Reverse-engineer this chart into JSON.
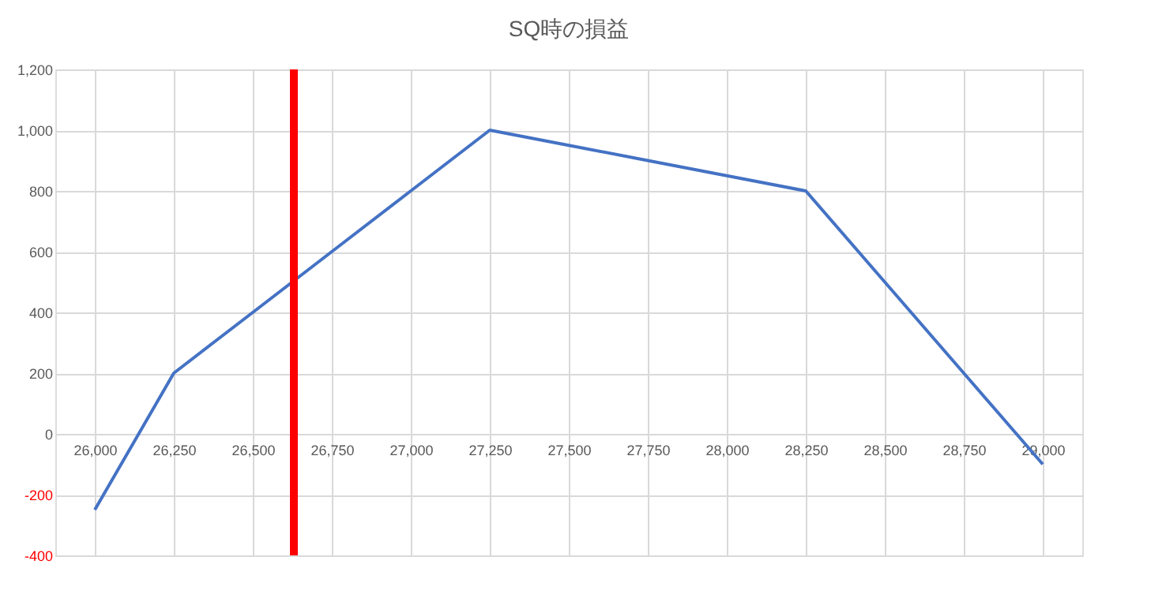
{
  "chart_data": {
    "type": "line",
    "title": "SQ時の損益",
    "x": [
      26000,
      26250,
      26500,
      26750,
      27000,
      27250,
      27500,
      27750,
      28000,
      28250,
      28500,
      28750,
      29000
    ],
    "series": [
      {
        "color": "#4472c4",
        "values": [
          -250,
          200,
          400,
          600,
          800,
          1000,
          950,
          900,
          850,
          800,
          500,
          200,
          -100
        ]
      }
    ],
    "xlim": [
      25875,
      29125
    ],
    "xticks": [
      {
        "value": 26000,
        "label": "26,000"
      },
      {
        "value": 26250,
        "label": "26,250"
      },
      {
        "value": 26500,
        "label": "26,500"
      },
      {
        "value": 26750,
        "label": "26,750"
      },
      {
        "value": 27000,
        "label": "27,000"
      },
      {
        "value": 27250,
        "label": "27,250"
      },
      {
        "value": 27500,
        "label": "27,500"
      },
      {
        "value": 27750,
        "label": "27,750"
      },
      {
        "value": 28000,
        "label": "28,000"
      },
      {
        "value": 28250,
        "label": "28,250"
      },
      {
        "value": 28500,
        "label": "28,500"
      },
      {
        "value": 28750,
        "label": "28,750"
      },
      {
        "value": 29000,
        "label": "29,000"
      }
    ],
    "ylim": [
      -400,
      1200
    ],
    "yticks": [
      -400,
      -200,
      0,
      200,
      400,
      600,
      800,
      {
        "value": 1000,
        "label": "1,000"
      },
      {
        "value": 1200,
        "label": "1,200"
      }
    ],
    "ref_lines": [
      {
        "axis": "x",
        "value": 26630,
        "color": "#ff0000"
      }
    ],
    "grid": true,
    "marker": "none",
    "line_style": "solid"
  }
}
